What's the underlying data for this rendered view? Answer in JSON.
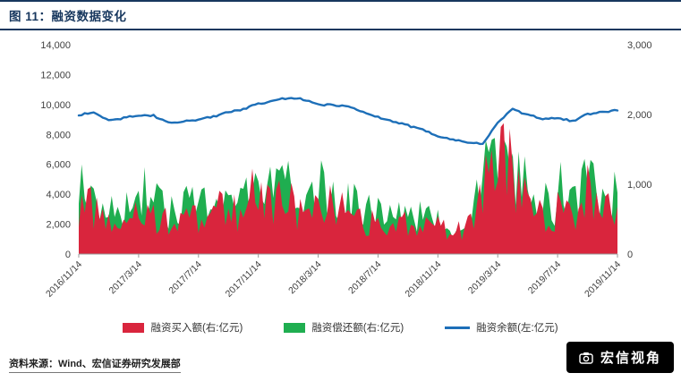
{
  "figure": {
    "title": "图 11：融资数据变化",
    "source": "资料来源：Wind、宏信证券研究发展部",
    "watermark": "宏信视角"
  },
  "chart_data": {
    "type": "area",
    "title": "融资数据变化",
    "sampling": "monthly anchors estimated from a daily series; axes read off chart",
    "x_anchor_months": [
      "2016/11",
      "2016/12",
      "2017/1",
      "2017/2",
      "2017/3",
      "2017/4",
      "2017/5",
      "2017/6",
      "2017/7",
      "2017/8",
      "2017/9",
      "2017/10",
      "2017/11",
      "2017/12",
      "2018/1",
      "2018/2",
      "2018/3",
      "2018/4",
      "2018/5",
      "2018/6",
      "2018/7",
      "2018/8",
      "2018/9",
      "2018/10",
      "2018/11",
      "2018/12",
      "2019/1",
      "2019/2",
      "2019/3",
      "2019/4",
      "2019/5",
      "2019/6",
      "2019/7",
      "2019/8",
      "2019/9",
      "2019/10",
      "2019/11"
    ],
    "x_tick_labels": [
      "2016/11/14",
      "2017/3/14",
      "2017/7/14",
      "2017/11/14",
      "2018/3/14",
      "2018/7/14",
      "2018/11/14",
      "2019/3/14",
      "2019/7/14",
      "2019/11/14"
    ],
    "left_axis": {
      "min": 0,
      "max": 14000,
      "ticks": [
        "0",
        "2,000",
        "4,000",
        "6,000",
        "8,000",
        "10,000",
        "12,000",
        "14,000"
      ]
    },
    "right_axis": {
      "min": 0,
      "max": 3000,
      "ticks": [
        "0",
        "1,000",
        "2,000",
        "3,000"
      ]
    },
    "series": [
      {
        "key": "buy",
        "label": "融资买入额(右:亿元)",
        "type": "area",
        "axis": "right",
        "color": "#d9253d",
        "monthly_values": [
          750,
          700,
          480,
          520,
          650,
          580,
          450,
          500,
          560,
          680,
          620,
          580,
          850,
          700,
          780,
          520,
          720,
          680,
          580,
          480,
          430,
          380,
          420,
          470,
          380,
          330,
          380,
          800,
          1750,
          1250,
          650,
          560,
          620,
          580,
          850,
          560,
          680
        ]
      },
      {
        "key": "repay",
        "label": "融资偿还额(右:亿元)",
        "type": "area",
        "axis": "right",
        "color": "#1fae50",
        "monthly_values": [
          950,
          880,
          650,
          680,
          850,
          760,
          580,
          650,
          730,
          900,
          800,
          760,
          1100,
          900,
          1000,
          680,
          950,
          880,
          760,
          620,
          560,
          500,
          550,
          600,
          500,
          430,
          500,
          1000,
          2050,
          1500,
          850,
          730,
          800,
          760,
          1100,
          730,
          880
        ]
      },
      {
        "key": "balance",
        "label": "融资余额(左:亿元)",
        "type": "line",
        "axis": "left",
        "color": "#1d6fb8",
        "monthly_values": [
          9300,
          9500,
          8950,
          9100,
          9300,
          9250,
          8800,
          8850,
          9000,
          9200,
          9500,
          9700,
          10050,
          10250,
          10450,
          10350,
          10000,
          9950,
          9900,
          9500,
          9150,
          8850,
          8600,
          8300,
          7900,
          7650,
          7450,
          7350,
          8800,
          9700,
          9300,
          9050,
          9100,
          8900,
          9350,
          9500,
          9600
        ]
      }
    ]
  }
}
